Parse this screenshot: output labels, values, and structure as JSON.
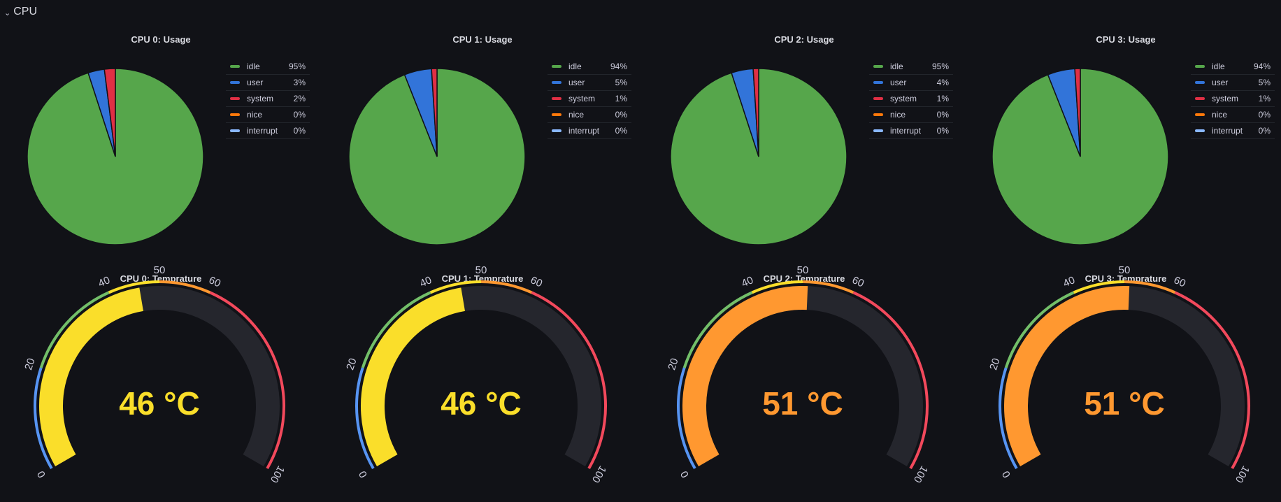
{
  "row": {
    "chevron": "›",
    "title": "CPU"
  },
  "usage_panels": [
    {
      "title": "CPU 0: Usage",
      "chart_data": {
        "type": "pie",
        "slices": [
          {
            "name": "idle",
            "value": 95,
            "label": "95%",
            "color": "#56a64b"
          },
          {
            "name": "user",
            "value": 3,
            "label": "3%",
            "color": "#3274d9"
          },
          {
            "name": "system",
            "value": 2,
            "label": "2%",
            "color": "#e02f44"
          },
          {
            "name": "nice",
            "value": 0,
            "label": "0%",
            "color": "#ff780a"
          },
          {
            "name": "interrupt",
            "value": 0,
            "label": "0%",
            "color": "#8ab8ff"
          }
        ]
      }
    },
    {
      "title": "CPU 1: Usage",
      "chart_data": {
        "type": "pie",
        "slices": [
          {
            "name": "idle",
            "value": 94,
            "label": "94%",
            "color": "#56a64b"
          },
          {
            "name": "user",
            "value": 5,
            "label": "5%",
            "color": "#3274d9"
          },
          {
            "name": "system",
            "value": 1,
            "label": "1%",
            "color": "#e02f44"
          },
          {
            "name": "nice",
            "value": 0,
            "label": "0%",
            "color": "#ff780a"
          },
          {
            "name": "interrupt",
            "value": 0,
            "label": "0%",
            "color": "#8ab8ff"
          }
        ]
      }
    },
    {
      "title": "CPU 2: Usage",
      "chart_data": {
        "type": "pie",
        "slices": [
          {
            "name": "idle",
            "value": 95,
            "label": "95%",
            "color": "#56a64b"
          },
          {
            "name": "user",
            "value": 4,
            "label": "4%",
            "color": "#3274d9"
          },
          {
            "name": "system",
            "value": 1,
            "label": "1%",
            "color": "#e02f44"
          },
          {
            "name": "nice",
            "value": 0,
            "label": "0%",
            "color": "#ff780a"
          },
          {
            "name": "interrupt",
            "value": 0,
            "label": "0%",
            "color": "#8ab8ff"
          }
        ]
      }
    },
    {
      "title": "CPU 3: Usage",
      "chart_data": {
        "type": "pie",
        "slices": [
          {
            "name": "idle",
            "value": 94,
            "label": "94%",
            "color": "#56a64b"
          },
          {
            "name": "user",
            "value": 5,
            "label": "5%",
            "color": "#3274d9"
          },
          {
            "name": "system",
            "value": 1,
            "label": "1%",
            "color": "#e02f44"
          },
          {
            "name": "nice",
            "value": 0,
            "label": "0%",
            "color": "#ff780a"
          },
          {
            "name": "interrupt",
            "value": 0,
            "label": "0%",
            "color": "#8ab8ff"
          }
        ]
      }
    }
  ],
  "temp_panels": [
    {
      "title": "CPU 0: Temprature",
      "value": 46,
      "display": "46 °C",
      "color": "#fade2a"
    },
    {
      "title": "CPU 1: Temprature",
      "value": 46,
      "display": "46 °C",
      "color": "#fade2a"
    },
    {
      "title": "CPU 2: Temprature",
      "value": 51,
      "display": "51 °C",
      "color": "#ff9830"
    },
    {
      "title": "CPU 3: Temprature",
      "value": 51,
      "display": "51 °C",
      "color": "#ff9830"
    }
  ],
  "gauge": {
    "min": 0,
    "max": 100,
    "threshold_labels": [
      "0",
      "20",
      "40",
      "50",
      "60",
      "100"
    ],
    "threshold_values": [
      0,
      20,
      40,
      50,
      60,
      100
    ],
    "bands": [
      {
        "from": 0,
        "to": 20,
        "color": "#5794f2"
      },
      {
        "from": 20,
        "to": 40,
        "color": "#73bf69"
      },
      {
        "from": 40,
        "to": 50,
        "color": "#fade2a"
      },
      {
        "from": 50,
        "to": 60,
        "color": "#ff9830"
      },
      {
        "from": 60,
        "to": 100,
        "color": "#f2495c"
      }
    ],
    "track_color": "#25262d"
  }
}
